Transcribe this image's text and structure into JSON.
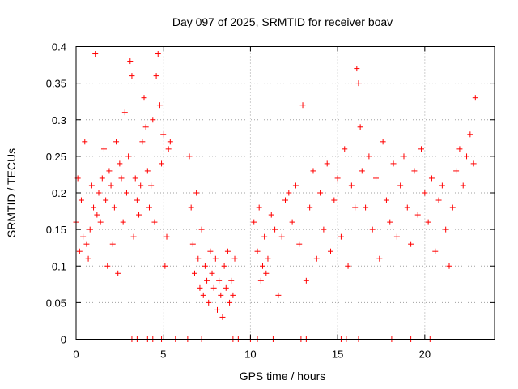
{
  "chart_data": {
    "type": "scatter",
    "title": "Day 097 of 2025, SRMTID for receiver boav",
    "xlabel": "GPS time / hours",
    "ylabel": "SRMTID / TECUs",
    "xlim": [
      0,
      24
    ],
    "ylim": [
      0,
      0.4
    ],
    "xticks": [
      0,
      5,
      10,
      15,
      20
    ],
    "xtick_labels": [
      "0",
      "5",
      "10",
      "15",
      "20"
    ],
    "yticks": [
      0,
      0.05,
      0.1,
      0.15,
      0.2,
      0.25,
      0.3,
      0.35,
      0.4
    ],
    "ytick_labels": [
      "0",
      "0.05",
      "0.1",
      "0.15",
      "0.2",
      "0.25",
      "0.3",
      "0.35",
      "0.4"
    ],
    "grid": true,
    "marker": "+",
    "color": "#ff0000",
    "series": [
      {
        "name": "SRMTID",
        "x": [
          0.0,
          0.1,
          0.2,
          0.3,
          0.4,
          0.5,
          0.6,
          0.7,
          0.8,
          0.9,
          1.0,
          1.1,
          1.2,
          1.3,
          1.4,
          1.5,
          1.6,
          1.7,
          1.8,
          1.9,
          2.0,
          2.1,
          2.2,
          2.3,
          2.4,
          2.5,
          2.6,
          2.7,
          2.8,
          2.9,
          3.0,
          3.1,
          3.2,
          3.3,
          3.4,
          3.5,
          3.6,
          3.7,
          3.8,
          3.9,
          4.0,
          4.1,
          4.2,
          4.3,
          4.4,
          4.5,
          4.6,
          4.7,
          4.8,
          4.9,
          5.0,
          5.1,
          5.2,
          5.3,
          5.4,
          6.5,
          6.6,
          6.7,
          6.8,
          6.9,
          7.0,
          7.1,
          7.2,
          7.3,
          7.4,
          7.5,
          7.6,
          7.7,
          7.8,
          7.9,
          8.0,
          8.1,
          8.2,
          8.3,
          8.4,
          8.5,
          8.6,
          8.7,
          8.8,
          8.9,
          9.0,
          9.1,
          10.2,
          10.4,
          10.5,
          10.6,
          10.7,
          10.8,
          10.9,
          11.0,
          11.2,
          11.4,
          11.6,
          11.8,
          12.0,
          12.2,
          12.4,
          12.6,
          12.8,
          13.0,
          13.2,
          13.4,
          13.6,
          13.8,
          14.0,
          14.2,
          14.4,
          14.6,
          14.8,
          15.0,
          15.2,
          15.4,
          15.6,
          15.8,
          16.0,
          16.1,
          16.2,
          16.3,
          16.4,
          16.6,
          16.8,
          17.0,
          17.2,
          17.4,
          17.6,
          17.8,
          18.0,
          18.2,
          18.4,
          18.6,
          18.8,
          19.0,
          19.2,
          19.4,
          19.6,
          19.8,
          20.0,
          20.2,
          20.4,
          20.6,
          20.8,
          21.0,
          21.2,
          21.4,
          21.6,
          21.8,
          22.0,
          22.2,
          22.4,
          22.6,
          22.8,
          22.9
        ],
        "y": [
          0.16,
          0.22,
          0.12,
          0.19,
          0.14,
          0.27,
          0.13,
          0.11,
          0.15,
          0.21,
          0.18,
          0.39,
          0.17,
          0.2,
          0.16,
          0.22,
          0.26,
          0.19,
          0.1,
          0.23,
          0.21,
          0.13,
          0.18,
          0.27,
          0.09,
          0.24,
          0.22,
          0.16,
          0.31,
          0.2,
          0.25,
          0.38,
          0.36,
          0.14,
          0.22,
          0.19,
          0.17,
          0.21,
          0.27,
          0.33,
          0.29,
          0.23,
          0.18,
          0.21,
          0.3,
          0.16,
          0.36,
          0.39,
          0.32,
          0.24,
          0.28,
          0.1,
          0.14,
          0.26,
          0.27,
          0.25,
          0.18,
          0.13,
          0.09,
          0.2,
          0.11,
          0.07,
          0.15,
          0.06,
          0.1,
          0.08,
          0.05,
          0.12,
          0.09,
          0.07,
          0.11,
          0.04,
          0.08,
          0.06,
          0.03,
          0.1,
          0.07,
          0.12,
          0.05,
          0.08,
          0.06,
          0.11,
          0.16,
          0.12,
          0.18,
          0.08,
          0.1,
          0.14,
          0.09,
          0.11,
          0.17,
          0.15,
          0.06,
          0.14,
          0.19,
          0.2,
          0.16,
          0.21,
          0.13,
          0.32,
          0.08,
          0.18,
          0.23,
          0.11,
          0.2,
          0.15,
          0.24,
          0.12,
          0.19,
          0.22,
          0.14,
          0.26,
          0.1,
          0.21,
          0.18,
          0.37,
          0.35,
          0.29,
          0.23,
          0.18,
          0.25,
          0.15,
          0.22,
          0.11,
          0.27,
          0.19,
          0.16,
          0.24,
          0.14,
          0.21,
          0.25,
          0.18,
          0.13,
          0.23,
          0.17,
          0.26,
          0.2,
          0.16,
          0.22,
          0.12,
          0.19,
          0.21,
          0.15,
          0.1,
          0.18,
          0.23,
          0.26,
          0.21,
          0.25,
          0.28,
          0.24,
          0.33
        ],
        "zero_marks_x": [
          3.2,
          3.5,
          4.1,
          4.4,
          4.9,
          5.7,
          6.4,
          7.2,
          9.0,
          9.3,
          10.0,
          10.4,
          11.3,
          12.9,
          13.2,
          15.2,
          15.5,
          16.2,
          18.1,
          19.2,
          20.3
        ]
      }
    ]
  }
}
